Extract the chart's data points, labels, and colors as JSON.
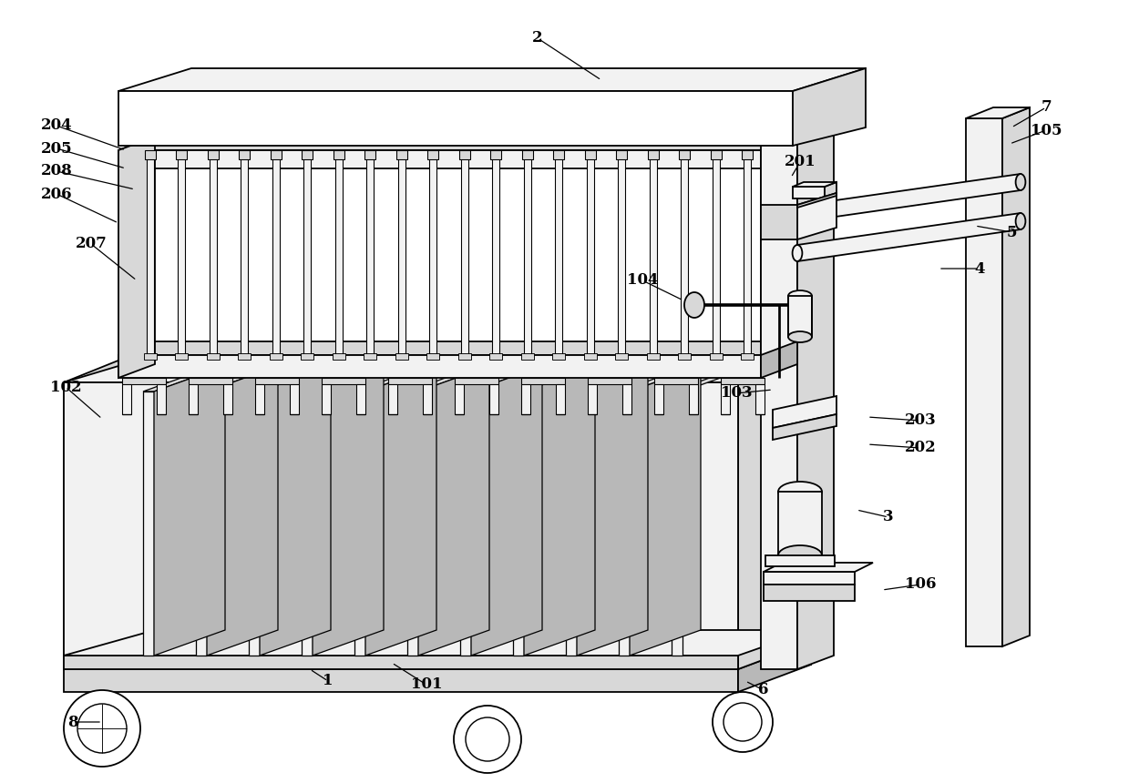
{
  "background_color": "#ffffff",
  "line_color": "#000000",
  "lw": 1.3,
  "labels": [
    [
      "2",
      590,
      42
    ],
    [
      "204",
      62,
      138
    ],
    [
      "205",
      62,
      163
    ],
    [
      "208",
      62,
      188
    ],
    [
      "206",
      62,
      213
    ],
    [
      "207",
      100,
      268
    ],
    [
      "201",
      878,
      178
    ],
    [
      "7",
      1148,
      118
    ],
    [
      "105",
      1148,
      143
    ],
    [
      "5",
      1110,
      255
    ],
    [
      "4",
      1075,
      295
    ],
    [
      "104",
      705,
      308
    ],
    [
      "103",
      808,
      432
    ],
    [
      "203",
      1010,
      462
    ],
    [
      "202",
      1010,
      492
    ],
    [
      "3",
      975,
      568
    ],
    [
      "106",
      1010,
      642
    ],
    [
      "102",
      72,
      425
    ],
    [
      "101",
      468,
      752
    ],
    [
      "1",
      360,
      748
    ],
    [
      "6",
      838,
      758
    ],
    [
      "8",
      80,
      793
    ]
  ],
  "leader_lines": [
    [
      "2",
      590,
      42,
      660,
      88
    ],
    [
      "204",
      62,
      138,
      138,
      165
    ],
    [
      "205",
      62,
      163,
      138,
      185
    ],
    [
      "208",
      62,
      188,
      148,
      208
    ],
    [
      "206",
      62,
      213,
      130,
      245
    ],
    [
      "207",
      100,
      268,
      150,
      308
    ],
    [
      "201",
      878,
      178,
      868,
      195
    ],
    [
      "7",
      1148,
      118,
      1110,
      140
    ],
    [
      "105",
      1148,
      143,
      1108,
      158
    ],
    [
      "5",
      1110,
      255,
      1070,
      248
    ],
    [
      "4",
      1075,
      295,
      1030,
      295
    ],
    [
      "104",
      705,
      308,
      750,
      330
    ],
    [
      "103",
      808,
      432,
      848,
      428
    ],
    [
      "203",
      1010,
      462,
      952,
      458
    ],
    [
      "202",
      1010,
      492,
      952,
      488
    ],
    [
      "3",
      975,
      568,
      940,
      560
    ],
    [
      "106",
      1010,
      642,
      968,
      648
    ],
    [
      "102",
      72,
      425,
      112,
      460
    ],
    [
      "101",
      468,
      752,
      430,
      728
    ],
    [
      "1",
      360,
      748,
      340,
      735
    ],
    [
      "6",
      838,
      758,
      818,
      748
    ],
    [
      "8",
      80,
      793,
      112,
      793
    ]
  ]
}
